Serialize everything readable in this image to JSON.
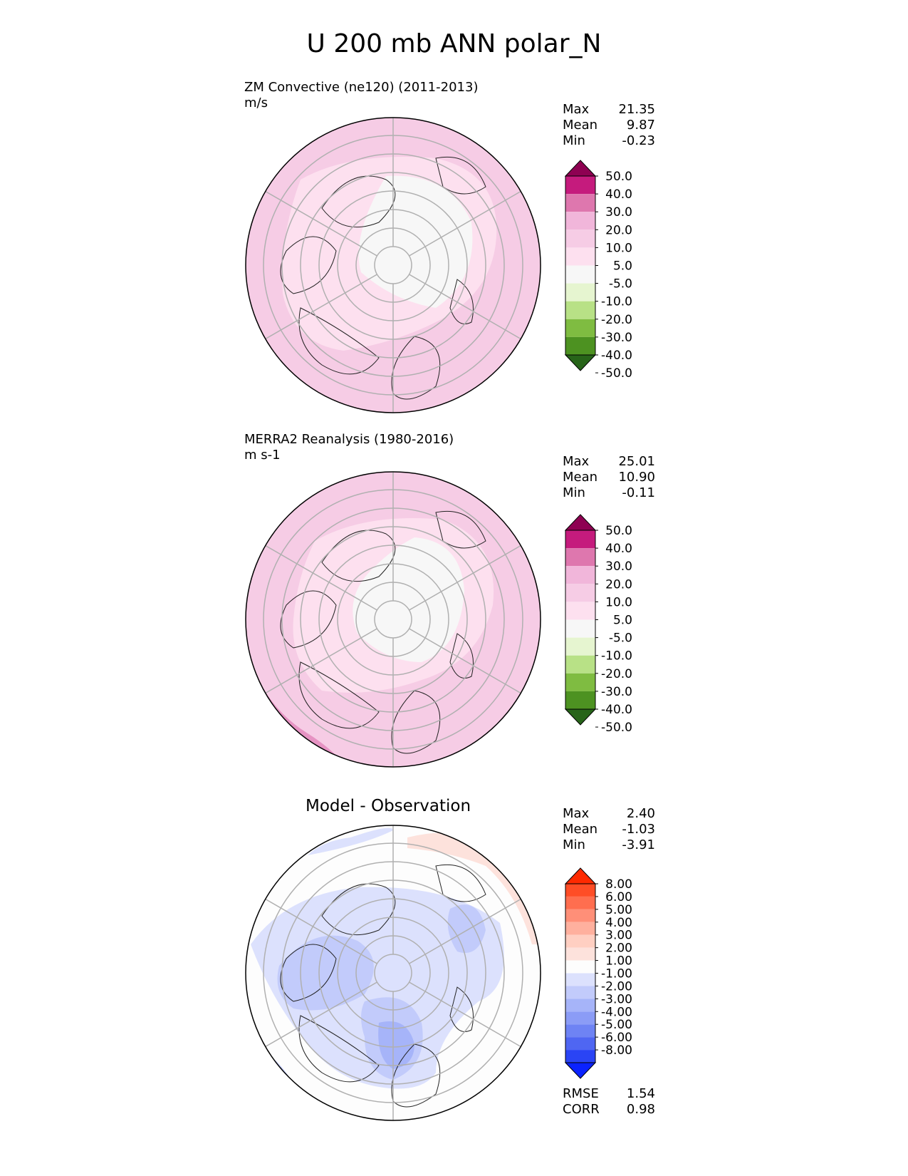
{
  "figure": {
    "title": "U 200 mb ANN polar_N"
  },
  "panels": [
    {
      "id": "test",
      "title_line1": "ZM Convective (ne120) (2011-2013)",
      "title_line2": "m/s",
      "stats": [
        {
          "label": "Max",
          "value": "21.35"
        },
        {
          "label": "Mean",
          "value": "9.87"
        },
        {
          "label": "Min",
          "value": "-0.23"
        }
      ],
      "colorbar": {
        "tick_labels": [
          "50.0",
          "40.0",
          "30.0",
          "20.0",
          "10.0",
          "5.0",
          "-5.0",
          "-10.0",
          "-20.0",
          "-30.0",
          "-40.0",
          "-50.0"
        ],
        "colors": [
          "#8e0152",
          "#c51b7d",
          "#de77ae",
          "#f1b6da",
          "#f6cce5",
          "#fde0ef",
          "#f7f7f7",
          "#e6f5d0",
          "#b8e186",
          "#7fbc41",
          "#4d9221",
          "#276419"
        ]
      }
    },
    {
      "id": "reference",
      "title_line1": "MERRA2 Reanalysis (1980-2016)",
      "title_line2": "m s-1",
      "stats": [
        {
          "label": "Max",
          "value": "25.01"
        },
        {
          "label": "Mean",
          "value": "10.90"
        },
        {
          "label": "Min",
          "value": "-0.11"
        }
      ],
      "colorbar": {
        "tick_labels": [
          "50.0",
          "40.0",
          "30.0",
          "20.0",
          "10.0",
          "5.0",
          "-5.0",
          "-10.0",
          "-20.0",
          "-30.0",
          "-40.0",
          "-50.0"
        ],
        "colors": [
          "#8e0152",
          "#c51b7d",
          "#de77ae",
          "#f1b6da",
          "#f6cce5",
          "#fde0ef",
          "#f7f7f7",
          "#e6f5d0",
          "#b8e186",
          "#7fbc41",
          "#4d9221",
          "#276419"
        ]
      }
    },
    {
      "id": "difference",
      "title": "Model - Observation",
      "stats": [
        {
          "label": "Max",
          "value": "2.40"
        },
        {
          "label": "Mean",
          "value": "-1.03"
        },
        {
          "label": "Min",
          "value": "-3.91"
        }
      ],
      "extra_stats": [
        {
          "label": "RMSE",
          "value": "1.54"
        },
        {
          "label": "CORR",
          "value": "0.98"
        }
      ],
      "colorbar": {
        "tick_labels": [
          "8.00",
          "6.00",
          "5.00",
          "4.00",
          "3.00",
          "2.00",
          "1.00",
          "-1.00",
          "-2.00",
          "-3.00",
          "-4.00",
          "-5.00",
          "-6.00",
          "-8.00"
        ],
        "colors": [
          "#ff2a00",
          "#ff4d26",
          "#ff6e4f",
          "#ff8f78",
          "#ffb09e",
          "#ffcfc2",
          "#fde2dc",
          "#fdfdfd",
          "#dce1fd",
          "#c2cbfb",
          "#a6b4f9",
          "#8b9cf6",
          "#6e83f4",
          "#4f66f2",
          "#2a44f5",
          "#0a22ff"
        ]
      }
    }
  ]
}
